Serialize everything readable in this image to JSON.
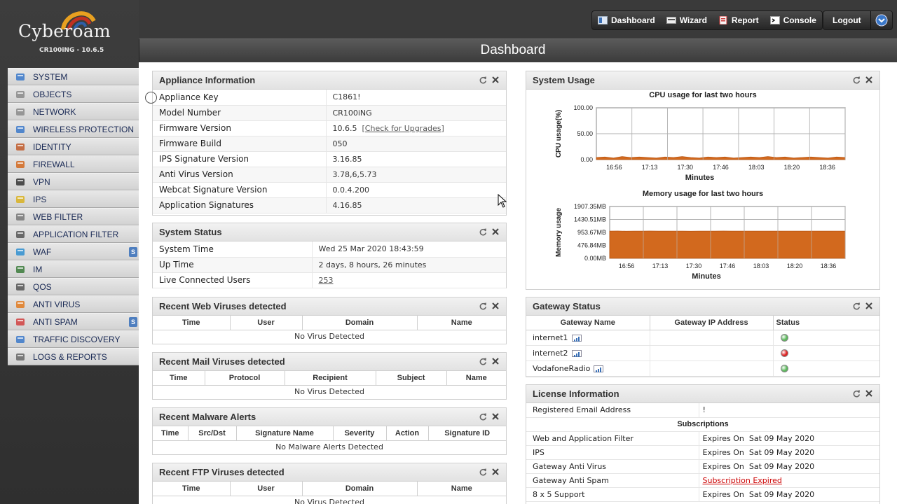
{
  "brand": {
    "name": "Cyberoam",
    "version": "CR100iNG - 10.6.5"
  },
  "menu": [
    {
      "label": "SYSTEM",
      "icon": "monitor-icon",
      "color": "#3a78c9"
    },
    {
      "label": "OBJECTS",
      "icon": "objects-icon",
      "color": "#8a8a8a"
    },
    {
      "label": "NETWORK",
      "icon": "network-icon",
      "color": "#8a8a8a"
    },
    {
      "label": "WIRELESS PROTECTION",
      "icon": "wireless-icon",
      "color": "#3a78c9"
    },
    {
      "label": "IDENTITY",
      "icon": "identity-icon",
      "color": "#c05a2a"
    },
    {
      "label": "FIREWALL",
      "icon": "firewall-icon",
      "color": "#d2691e"
    },
    {
      "label": "VPN",
      "icon": "vpn-icon",
      "color": "#333333"
    },
    {
      "label": "IPS",
      "icon": "shield-icon",
      "color": "#d8b020"
    },
    {
      "label": "WEB FILTER",
      "icon": "filter-icon",
      "color": "#777777"
    },
    {
      "label": "APPLICATION FILTER",
      "icon": "app-filter-icon",
      "color": "#555555"
    },
    {
      "label": "WAF",
      "icon": "globe-icon",
      "color": "#2f8fd0",
      "badge": "S"
    },
    {
      "label": "IM",
      "icon": "im-icon",
      "color": "#3a7a3a"
    },
    {
      "label": "QoS",
      "icon": "qos-icon",
      "color": "#555555"
    },
    {
      "label": "ANTI VIRUS",
      "icon": "antivirus-icon",
      "color": "#e07a20"
    },
    {
      "label": "ANTI SPAM",
      "icon": "antispam-icon",
      "color": "#d04040",
      "badge": "S"
    },
    {
      "label": "TRAFFIC DISCOVERY",
      "icon": "traffic-icon",
      "color": "#3a78c9"
    },
    {
      "label": "LOGS & REPORTS",
      "icon": "logs-icon",
      "color": "#666666"
    }
  ],
  "topnav": {
    "dashboard": "Dashboard",
    "wizard": "Wizard",
    "report": "Report",
    "console": "Console",
    "logout": "Logout"
  },
  "page_title": "Dashboard",
  "appliance": {
    "title": "Appliance Information",
    "rows": [
      {
        "k": "Appliance Key",
        "v": "C1861!"
      },
      {
        "k": "Model Number",
        "v": "CR100iNG"
      },
      {
        "k": "Firmware Version",
        "v": "10.6.5",
        "link": "[Check for Upgrades]"
      },
      {
        "k": "Firmware Build",
        "v": "050"
      },
      {
        "k": "IPS Signature Version",
        "v": "3.16.85"
      },
      {
        "k": "Anti Virus Version",
        "v": "3.78,6,5.73"
      },
      {
        "k": "Webcat Signature Version",
        "v": "0.0.4.200"
      },
      {
        "k": "Application Signatures",
        "v": "4.16.85"
      }
    ]
  },
  "system_status": {
    "title": "System Status",
    "rows": [
      {
        "k": "System Time",
        "v": "Wed 25 Mar 2020 18:43:59"
      },
      {
        "k": "Up Time",
        "v": "2 days, 8 hours, 26 minutes"
      },
      {
        "k": "Live Connected Users",
        "v": "253"
      }
    ]
  },
  "web_viruses": {
    "title": "Recent Web Viruses detected",
    "cols": [
      "Time",
      "User",
      "Domain",
      "Name"
    ],
    "empty": "No Virus Detected"
  },
  "mail_viruses": {
    "title": "Recent Mail Viruses detected",
    "cols": [
      "Time",
      "Protocol",
      "Recipient",
      "Subject",
      "Name"
    ],
    "empty": "No Virus Detected"
  },
  "malware": {
    "title": "Recent Malware Alerts",
    "cols": [
      "Time",
      "Src/Dst",
      "Signature Name",
      "Severity",
      "Action",
      "Signature ID"
    ],
    "empty": "No Malware Alerts Detected"
  },
  "ftp_viruses": {
    "title": "Recent FTP Viruses detected",
    "cols": [
      "Time",
      "User",
      "Domain",
      "Name"
    ],
    "empty": "No Virus Detected"
  },
  "system_usage": {
    "title": "System Usage"
  },
  "chart_data": [
    {
      "type": "area",
      "title": "CPU usage for last two hours",
      "xlabel": "Minutes",
      "ylabel": "CPU usage(%)",
      "x_ticks": [
        "16:56",
        "17:13",
        "17:30",
        "17:46",
        "18:03",
        "18:20",
        "18:36"
      ],
      "y_ticks": [
        "100.00",
        "50.00",
        "0.00"
      ],
      "ylim": [
        0,
        100
      ],
      "series": [
        {
          "values": [
            4,
            5,
            3,
            6,
            4,
            5,
            4,
            3,
            5,
            4,
            6,
            4,
            3,
            5,
            4,
            5,
            3,
            4,
            5,
            4,
            6,
            4,
            5,
            3,
            4,
            5,
            4,
            3,
            5,
            4
          ],
          "color": "#d2691e"
        }
      ],
      "grid": true
    },
    {
      "type": "area",
      "title": "Memory usage for last two hours",
      "xlabel": "Minutes",
      "ylabel": "Memory usage",
      "x_ticks": [
        "16:56",
        "17:13",
        "17:30",
        "17:46",
        "18:03",
        "18:20",
        "18:36"
      ],
      "y_ticks": [
        "1907.35MB",
        "1430.51MB",
        "953.67MB",
        "476.84MB",
        "0.00MB"
      ],
      "ylim": [
        0,
        1907.35
      ],
      "series": [
        {
          "values": [
            1000,
            1005,
            998,
            1002,
            1000,
            1004,
            999,
            1001,
            1003,
            1000,
            998,
            1002,
            1001,
            1000,
            1004,
            999,
            1000,
            1002,
            1001,
            1003,
            1000,
            999,
            1002,
            1001,
            1000,
            1003,
            1000,
            1001,
            1002,
            1000
          ],
          "color": "#d2691e"
        }
      ],
      "grid": true
    }
  ],
  "gateway": {
    "title": "Gateway Status",
    "cols": [
      "Gateway Name",
      "Gateway IP Address",
      "Status"
    ],
    "rows": [
      {
        "name": "internet1",
        "status": "up",
        "color": "#5cb85c"
      },
      {
        "name": "internet2",
        "status": "down",
        "color": "#dd2222"
      },
      {
        "name": "VodafoneRadio",
        "status": "up",
        "color": "#5cb85c"
      }
    ]
  },
  "license": {
    "title": "License Information",
    "email_label": "Registered Email Address",
    "email_value": "!",
    "subscriptions": "Subscriptions",
    "rows": [
      {
        "k": "Web and Application Filter",
        "v": "Expires On  Sat 09 May 2020"
      },
      {
        "k": "IPS",
        "v": "Expires On  Sat 09 May 2020"
      },
      {
        "k": "Gateway Anti Virus",
        "v": "Expires On  Sat 09 May 2020"
      },
      {
        "k": "Gateway Anti Spam",
        "v": "Subscription Expired",
        "expired": true
      },
      {
        "k": "8 x 5 Support",
        "v": "Expires On  Sat 09 May 2020"
      }
    ]
  }
}
